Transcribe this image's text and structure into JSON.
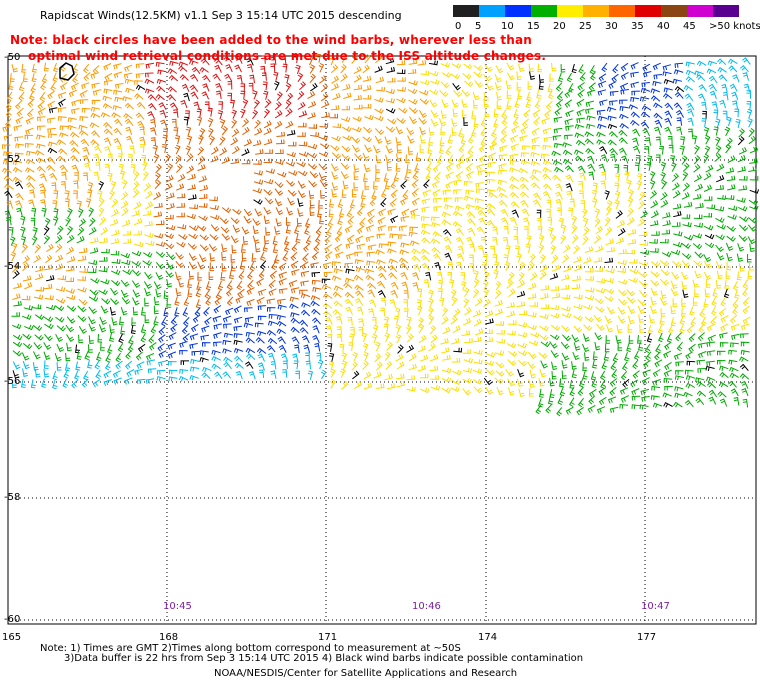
{
  "title": "Rapidscat Winds(12.5KM) v1.1 Sep  3 15:14 UTC 2015 descending",
  "notice": {
    "line1": "Note: black circles have been added to the wind barbs, wherever less than",
    "line2": "optimal wind retrieval conditions are met due to the ISS altitude changes."
  },
  "colorbar": {
    "unit": "knots",
    "labels": [
      "0",
      "5",
      "10",
      "15",
      "20",
      "25",
      "30",
      "35",
      "40",
      "45",
      ">50 knots"
    ],
    "colors": [
      "#202020",
      "#00a0ff",
      "#0030ff",
      "#00b000",
      "#ffee00",
      "#ffb000",
      "#ff6600",
      "#e00000",
      "#8b4513",
      "#d000d0",
      "#5a0090"
    ]
  },
  "axes": {
    "lat_labels": [
      "-50",
      "-52",
      "-54",
      "-56",
      "-58",
      "-60"
    ],
    "lon_labels": [
      "165",
      "168",
      "171",
      "174",
      "177"
    ]
  },
  "times": [
    "10:45",
    "10:46",
    "10:47"
  ],
  "footer": {
    "line1": "Note: 1) Times are GMT 2)Times along bottom correspond to measurement at ~50S",
    "line2": "3)Data buffer is 22 hrs from Sep  3 15:14 UTC 2015 4) Black wind barbs indicate possible contamination",
    "credit": "NOAA/NESDIS/Center for Satellite Applications and Research"
  }
}
